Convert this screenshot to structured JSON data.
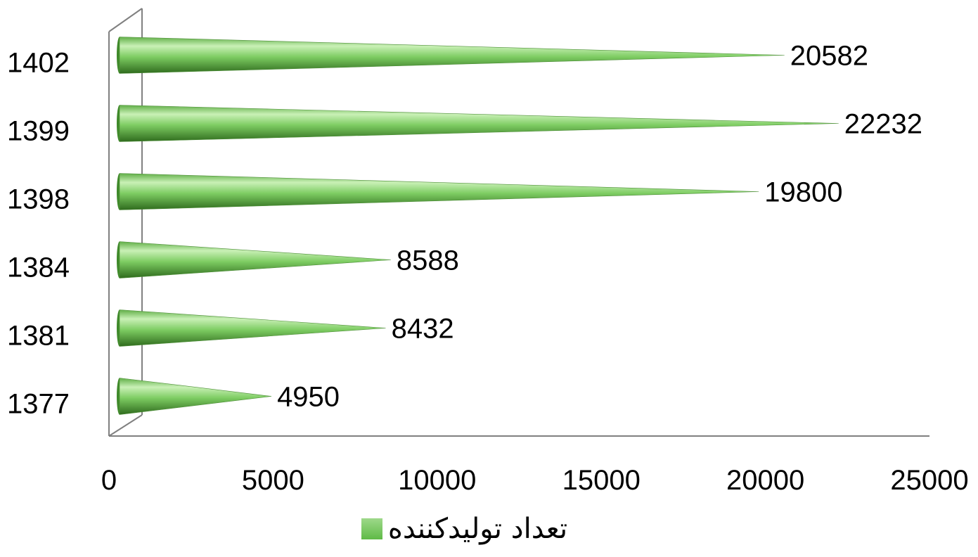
{
  "chart_data": {
    "type": "bar",
    "orientation": "horizontal",
    "shape": "cone",
    "categories": [
      "1377",
      "1381",
      "1384",
      "1398",
      "1399",
      "1402"
    ],
    "series": [
      {
        "name": "تعداد تولیدکننده",
        "values": [
          4950,
          8432,
          8588,
          19800,
          22232,
          20582
        ]
      }
    ],
    "data_labels": [
      "4950",
      "8432",
      "8588",
      "19800",
      "22232",
      "20582"
    ],
    "x_ticks": [
      "0",
      "5000",
      "10000",
      "15000",
      "20000",
      "25000"
    ],
    "xlim": [
      0,
      25000
    ],
    "legend_position": "bottom",
    "colors": {
      "bar": "#7dcc62",
      "bar_dark": "#2f6b1d",
      "bar_light": "#c9f0b6",
      "axis": "#808080"
    },
    "grid": false
  }
}
